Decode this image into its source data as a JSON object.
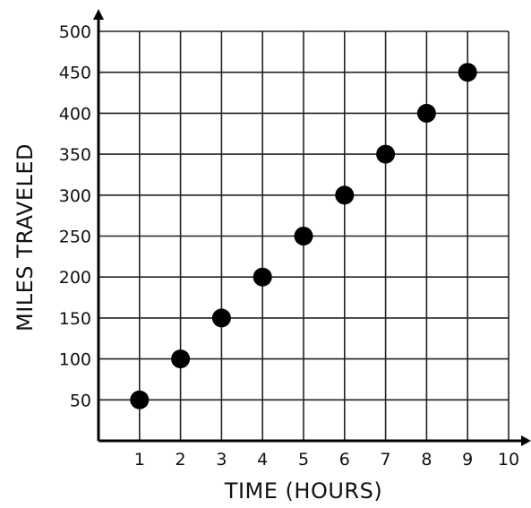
{
  "chart_data": {
    "type": "scatter",
    "title": "",
    "xlabel": "TIME (HOURS)",
    "ylabel": "MILES TRAVELED",
    "xlim": [
      0,
      10
    ],
    "ylim": [
      0,
      500
    ],
    "x_ticks": [
      1,
      2,
      3,
      4,
      5,
      6,
      7,
      8,
      9,
      10
    ],
    "y_ticks": [
      50,
      100,
      150,
      200,
      250,
      300,
      350,
      400,
      450,
      500
    ],
    "grid": true,
    "legend": "none",
    "colors": {
      "points": "#000000",
      "grid": "#222222",
      "axes": "#000000"
    },
    "series": [
      {
        "x": [
          1,
          2,
          3,
          4,
          5,
          6,
          7,
          8,
          9
        ],
        "y": [
          50,
          100,
          150,
          200,
          250,
          300,
          350,
          400,
          450
        ]
      }
    ]
  }
}
